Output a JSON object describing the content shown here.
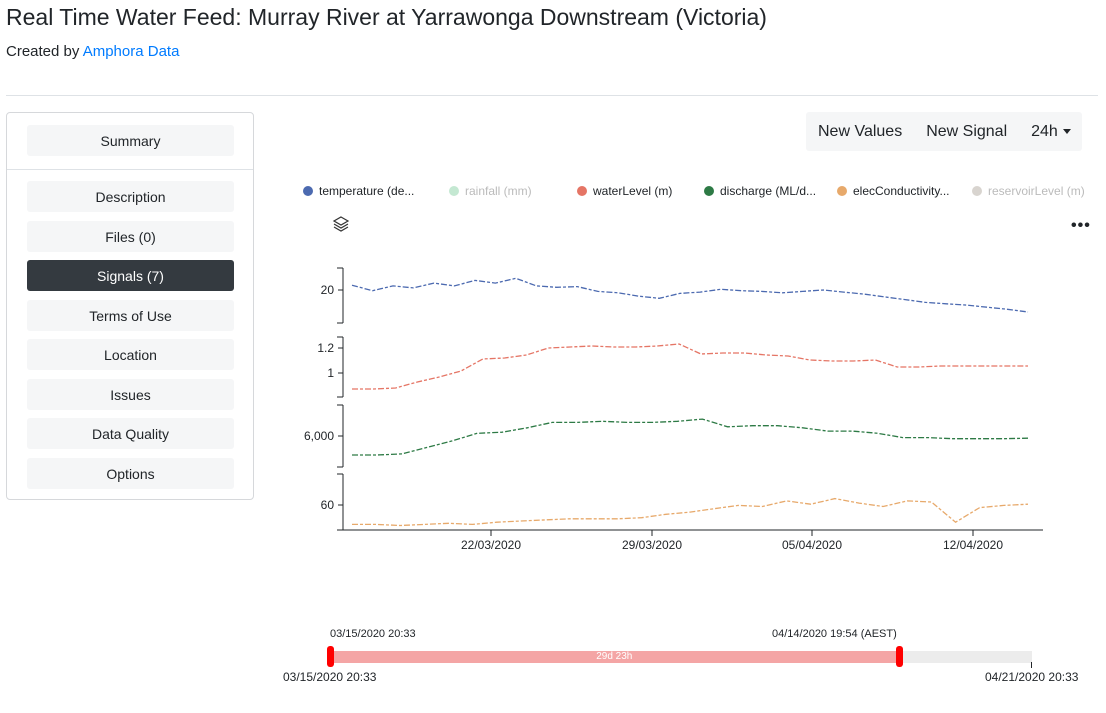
{
  "header": {
    "title": "Real Time Water Feed: Murray River at Yarrawonga Downstream (Victoria)",
    "created_by_prefix": "Created by ",
    "author": "Amphora Data"
  },
  "sidebar": {
    "summary": "Summary",
    "items": [
      {
        "label": "Description",
        "active": false
      },
      {
        "label": "Files (0)",
        "active": false
      },
      {
        "label": "Signals (7)",
        "active": true
      },
      {
        "label": "Terms of Use",
        "active": false
      },
      {
        "label": "Location",
        "active": false
      },
      {
        "label": "Issues",
        "active": false
      },
      {
        "label": "Data Quality",
        "active": false
      },
      {
        "label": "Options",
        "active": false
      }
    ]
  },
  "toolbar": {
    "new_values": "New Values",
    "new_signal": "New Signal",
    "range": "24h"
  },
  "legend": [
    {
      "label": "temperature (de...",
      "color": "#4c6ab0",
      "enabled": true
    },
    {
      "label": "rainfall (mm)",
      "color": "#c4e8d2",
      "enabled": false
    },
    {
      "label": "waterLevel (m)",
      "color": "#e57565",
      "enabled": true
    },
    {
      "label": "discharge (ML/d...",
      "color": "#2d7a45",
      "enabled": true
    },
    {
      "label": "elecConductivity...",
      "color": "#e7a96b",
      "enabled": true
    },
    {
      "label": "reservoirLevel (m)",
      "color": "#d8d4cf",
      "enabled": false
    }
  ],
  "icons": {
    "layers": "layers-icon",
    "more": "more-icon"
  },
  "more_glyph": "•••",
  "chart_data": {
    "type": "line",
    "x_start": "15/03/2020 20:33",
    "x_end": "14/04/2020 19:54",
    "x_ticks": [
      "22/03/2020",
      "29/03/2020",
      "05/04/2020",
      "12/04/2020"
    ],
    "panels": [
      {
        "series": "temperature (de...",
        "color": "#4c6ab0",
        "y_ticks": [
          "20"
        ],
        "ylim": [
          16,
          24
        ],
        "values": [
          21.5,
          20.7,
          21.4,
          21.1,
          21.8,
          21.4,
          22.2,
          21.8,
          22.5,
          21.4,
          21.2,
          21.3,
          20.6,
          20.4,
          19.9,
          19.6,
          20.3,
          20.5,
          20.9,
          20.7,
          20.6,
          20.4,
          20.6,
          20.8,
          20.5,
          20.2,
          19.8,
          19.4,
          19.0,
          18.8,
          18.6,
          18.3,
          18.0,
          17.6
        ]
      },
      {
        "series": "waterLevel (m)",
        "color": "#e57565",
        "y_ticks": [
          "1",
          "1.2"
        ],
        "ylim": [
          0.72,
          1.32
        ],
        "values": [
          0.8,
          0.8,
          0.81,
          0.87,
          0.92,
          0.98,
          1.1,
          1.11,
          1.14,
          1.21,
          1.22,
          1.23,
          1.22,
          1.22,
          1.23,
          1.25,
          1.15,
          1.16,
          1.16,
          1.14,
          1.13,
          1.09,
          1.08,
          1.08,
          1.09,
          1.02,
          1.02,
          1.03,
          1.03,
          1.03,
          1.03,
          1.03
        ]
      },
      {
        "series": "discharge (ML/d...",
        "color": "#2d7a45",
        "y_ticks": [
          "6,000"
        ],
        "ylim": [
          3500,
          9200
        ],
        "values": [
          4600,
          4600,
          4700,
          5300,
          5900,
          6600,
          6700,
          7100,
          7600,
          7600,
          7700,
          7600,
          7600,
          7700,
          7900,
          7200,
          7300,
          7300,
          7100,
          6800,
          6800,
          6600,
          6200,
          6200,
          6100,
          6100,
          6100,
          6150
        ]
      },
      {
        "series": "elecConductivity...",
        "color": "#e7a96b",
        "y_ticks": [
          "60"
        ],
        "ylim": [
          50,
          100
        ],
        "values": [
          55,
          55,
          54,
          55,
          56,
          55,
          57,
          58,
          59,
          60,
          60,
          60,
          61,
          64,
          66,
          69,
          72,
          71,
          76,
          73,
          78,
          74,
          71,
          76,
          75,
          57,
          70,
          72,
          73
        ]
      }
    ]
  },
  "range_slider": {
    "selected_start": "03/15/2020 20:33",
    "selected_end": "04/14/2020 19:54 (AEST)",
    "duration": "29d 23h",
    "min": "03/15/2020 20:33",
    "max": "04/21/2020 20:33",
    "selected_fraction_start": 0.0,
    "selected_fraction_end": 0.81
  }
}
